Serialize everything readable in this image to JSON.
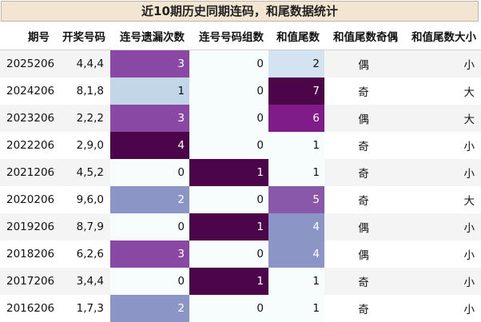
{
  "title": "近10期历史同期连码，和尾数据统计",
  "headers": [
    "期号",
    "开奖号码",
    "连号遗漏次数",
    "连号号码组数",
    "和值尾数",
    "和值尾数奇偶",
    "和值尾数大小"
  ],
  "colors": {
    "v0": "#f7fcfd",
    "v1": "#4d0549",
    "v2": "#8c96c6",
    "v3": "#8a48a5",
    "v4": "#4d0549",
    "v5": "#8a58a8",
    "v6": "#801c8a",
    "v7": "#4d0549",
    "v1_missing": "#c3d6e8",
    "v2_tail": "#d3e3f1",
    "v4_tail": "#8c96c6"
  },
  "rows": [
    {
      "issue": "2025206",
      "numbers": "4,4,4",
      "miss": "3",
      "groups": "0",
      "tail": "2",
      "parity": "偶",
      "size": "小"
    },
    {
      "issue": "2024206",
      "numbers": "8,1,8",
      "miss": "1",
      "groups": "0",
      "tail": "7",
      "parity": "奇",
      "size": "大"
    },
    {
      "issue": "2023206",
      "numbers": "2,2,2",
      "miss": "3",
      "groups": "0",
      "tail": "6",
      "parity": "偶",
      "size": "大"
    },
    {
      "issue": "2022206",
      "numbers": "2,9,0",
      "miss": "4",
      "groups": "0",
      "tail": "1",
      "parity": "奇",
      "size": "小"
    },
    {
      "issue": "2021206",
      "numbers": "4,5,2",
      "miss": "0",
      "groups": "1",
      "tail": "1",
      "parity": "奇",
      "size": "小"
    },
    {
      "issue": "2020206",
      "numbers": "9,6,0",
      "miss": "2",
      "groups": "0",
      "tail": "5",
      "parity": "奇",
      "size": "大"
    },
    {
      "issue": "2019206",
      "numbers": "8,7,9",
      "miss": "0",
      "groups": "1",
      "tail": "4",
      "parity": "偶",
      "size": "小"
    },
    {
      "issue": "2018206",
      "numbers": "6,2,6",
      "miss": "3",
      "groups": "0",
      "tail": "4",
      "parity": "偶",
      "size": "小"
    },
    {
      "issue": "2017206",
      "numbers": "3,4,4",
      "miss": "0",
      "groups": "1",
      "tail": "1",
      "parity": "奇",
      "size": "小"
    },
    {
      "issue": "2016206",
      "numbers": "1,7,3",
      "miss": "2",
      "groups": "0",
      "tail": "1",
      "parity": "奇",
      "size": "小"
    }
  ]
}
